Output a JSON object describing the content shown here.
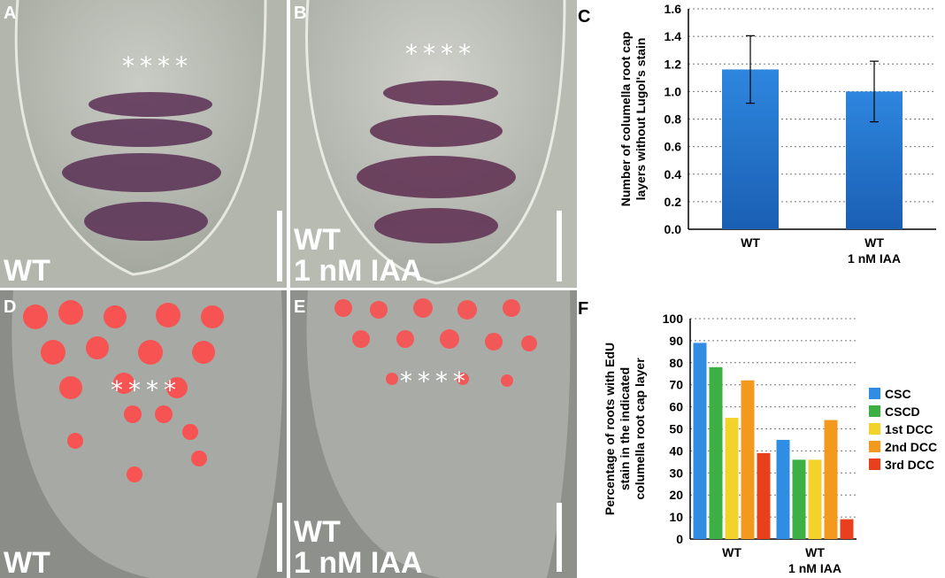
{
  "panels": {
    "A": {
      "label": "A",
      "stars": "****",
      "condition": "WT"
    },
    "B": {
      "label": "B",
      "stars": "****",
      "condition_line1": "WT",
      "condition_line2": "1 nM IAA"
    },
    "C": {
      "label": "C"
    },
    "D": {
      "label": "D",
      "stars": "****",
      "condition": "WT"
    },
    "E": {
      "label": "E",
      "stars": "****",
      "condition_line1": "WT",
      "condition_line2": "1 nM IAA"
    },
    "F": {
      "label": "F"
    }
  },
  "chart_data": [
    {
      "type": "bar",
      "panel": "C",
      "categories": [
        "WT",
        "WT\n1 nM IAA"
      ],
      "values": [
        1.16,
        1.0
      ],
      "error": [
        0.245,
        0.22
      ],
      "ylabel": "Number of columella root cap layers without Lugol's stain",
      "ylabel_lines": [
        "Number of columella root cap",
        "layers without Lugol's stain"
      ],
      "ylim": [
        0,
        1.6
      ],
      "yticks": [
        "0.0",
        "0.2",
        "0.4",
        "0.6",
        "0.8",
        "1.0",
        "1.2",
        "1.4",
        "1.6"
      ],
      "grid": true,
      "colors": {
        "bar": "#2e86de",
        "bar_dark": "#1a5fb4"
      }
    },
    {
      "type": "bar",
      "panel": "F",
      "categories": [
        "WT",
        "WT\n1 nM IAA"
      ],
      "series": [
        {
          "name": "CSC",
          "values": [
            89,
            45
          ],
          "color": "#2f8de4"
        },
        {
          "name": "CSCD",
          "values": [
            78,
            36
          ],
          "color": "#3cb043"
        },
        {
          "name": "1st DCC",
          "values": [
            55,
            36
          ],
          "color": "#f2d22b"
        },
        {
          "name": "2nd DCC",
          "values": [
            72,
            54
          ],
          "color": "#f39a1e"
        },
        {
          "name": "3rd DCC",
          "values": [
            39,
            9
          ],
          "color": "#e8401c"
        }
      ],
      "ylabel": "Percentage of roots with EdU stain in the indicated columella root cap layer",
      "ylabel_lines": [
        "Percentage of roots with EdU",
        "stain in the indicated",
        "columella root cap layer"
      ],
      "ylim": [
        0,
        100
      ],
      "yticks": [
        "0",
        "10",
        "20",
        "30",
        "40",
        "50",
        "60",
        "70",
        "80",
        "90",
        "100"
      ],
      "grid": true,
      "legend": "right"
    }
  ]
}
